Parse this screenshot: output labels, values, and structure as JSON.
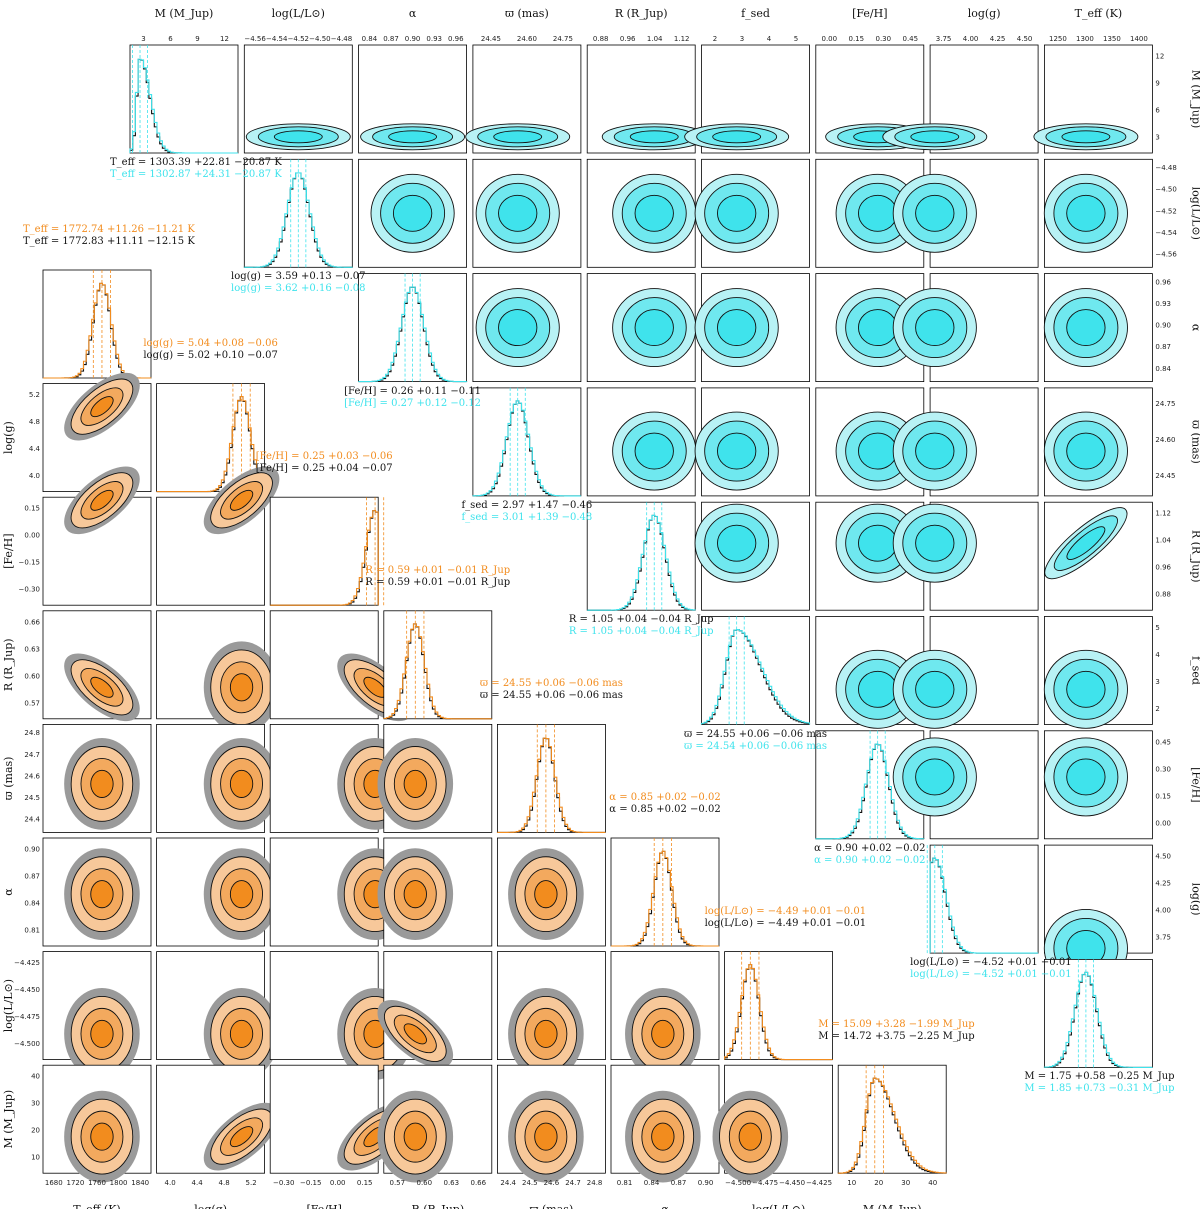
{
  "chart_data": [
    {
      "type": "corner",
      "name_note": "lower-left triangle",
      "series": [
        {
          "color": "#f28c1e",
          "role": "orange"
        },
        {
          "color": "#555555",
          "role": "black-outline / grey fill"
        }
      ],
      "parameters": [
        {
          "key": "teff",
          "label": "T_eff (K)",
          "ticks": [
            "1680",
            "1720",
            "1760",
            "1800",
            "1840"
          ],
          "range": [
            1680,
            1850
          ]
        },
        {
          "key": "logg",
          "label": "log(g)",
          "ticks": [
            "4.0",
            "4.4",
            "4.8",
            "5.2"
          ],
          "range": [
            3.85,
            5.35
          ]
        },
        {
          "key": "feh",
          "label": "[Fe/H]",
          "ticks": [
            "−0.30",
            "−0.15",
            "0.00",
            "0.15"
          ],
          "range": [
            -0.42,
            0.27
          ]
        },
        {
          "key": "r",
          "label": "R (R_Jup)",
          "ticks": [
            "0.57",
            "0.60",
            "0.63",
            "0.66"
          ],
          "range": [
            0.555,
            0.675
          ]
        },
        {
          "key": "plx",
          "label": "ϖ (mas)",
          "ticks": [
            "24.4",
            "24.5",
            "24.6",
            "24.7",
            "24.8"
          ],
          "range": [
            24.33,
            24.82
          ]
        },
        {
          "key": "alpha",
          "label": "α",
          "ticks": [
            "0.81",
            "0.84",
            "0.87",
            "0.90"
          ],
          "range": [
            0.79,
            0.915
          ]
        },
        {
          "key": "logl",
          "label": "log(L/L⊙)",
          "ticks": [
            "−4.500",
            "−4.475",
            "−4.450",
            "−4.425"
          ],
          "range": [
            -4.515,
            -4.41
          ]
        },
        {
          "key": "m",
          "label": "M (M_Jup)",
          "ticks": [
            "10",
            "20",
            "30",
            "40"
          ],
          "range": [
            0,
            44
          ]
        }
      ],
      "summaries": [
        {
          "orange": "T_eff = 1772.74 +11.26 −11.21 K",
          "black": "T_eff = 1772.83 +11.11 −12.15 K"
        },
        {
          "orange": "log(g) = 5.04 +0.08 −0.06",
          "black": "log(g) = 5.02 +0.10 −0.07"
        },
        {
          "orange": "[Fe/H] = 0.25 +0.03 −0.06",
          "black": "[Fe/H] = 0.25 +0.04 −0.07"
        },
        {
          "orange": "R = 0.59 +0.01 −0.01 R_Jup",
          "black": "R = 0.59 +0.01 −0.01 R_Jup"
        },
        {
          "orange": "ϖ = 24.55 +0.06 −0.06 mas",
          "black": "ϖ = 24.55 +0.06 −0.06 mas"
        },
        {
          "orange": "α = 0.85 +0.02 −0.02",
          "black": "α = 0.85 +0.02 −0.02"
        },
        {
          "orange": "log(L/L⊙) = −4.49 +0.01 −0.01",
          "black": "log(L/L⊙) = −4.49 +0.01 −0.01"
        },
        {
          "orange": "M = 15.09 +3.28 −1.99 M_Jup",
          "black": "M = 14.72 +3.75 −2.25 M_Jup"
        }
      ],
      "medians": [
        1772.8,
        5.03,
        0.25,
        0.59,
        24.55,
        0.85,
        -4.49,
        14.9
      ]
    },
    {
      "type": "corner",
      "name_note": "upper-right triangle",
      "series": [
        {
          "color": "#3fe3ec",
          "role": "cyan"
        },
        {
          "color": "#555555",
          "role": "black-outline / grey fill"
        }
      ],
      "parameters": [
        {
          "key": "m",
          "label": "M (M_Jup)",
          "ticks": [
            "3",
            "6",
            "9",
            "12"
          ],
          "range": [
            0.5,
            14.5
          ]
        },
        {
          "key": "logl",
          "label": "log(L/L⊙)",
          "ticks": [
            "−4.56",
            "−4.54",
            "−4.52",
            "−4.50",
            "−4.48"
          ],
          "range": [
            -4.565,
            -4.475
          ]
        },
        {
          "key": "alpha",
          "label": "α",
          "ticks": [
            "0.84",
            "0.87",
            "0.90",
            "0.93",
            "0.96"
          ],
          "range": [
            0.835,
            0.965
          ]
        },
        {
          "key": "plx",
          "label": "ϖ (mas)",
          "ticks": [
            "24.45",
            "24.60",
            "24.75"
          ],
          "range": [
            24.35,
            24.82
          ]
        },
        {
          "key": "r",
          "label": "R (R_Jup)",
          "ticks": [
            "0.88",
            "0.96",
            "1.04",
            "1.12"
          ],
          "range": [
            0.87,
            1.16
          ]
        },
        {
          "key": "fsed",
          "label": "f_sed",
          "ticks": [
            "2",
            "3",
            "4",
            "5"
          ],
          "range": [
            1.6,
            5.9
          ]
        },
        {
          "key": "feh",
          "label": "[Fe/H]",
          "ticks": [
            "0.00",
            "0.15",
            "0.30",
            "0.45"
          ],
          "range": [
            -0.05,
            0.5
          ]
        },
        {
          "key": "logg",
          "label": "log(g)",
          "ticks": [
            "3.75",
            "4.00",
            "4.25",
            "4.50"
          ],
          "range": [
            3.55,
            4.7
          ]
        },
        {
          "key": "teff",
          "label": "T_eff (K)",
          "ticks": [
            "1250",
            "1300",
            "1350",
            "1400"
          ],
          "range": [
            1230,
            1420
          ]
        }
      ],
      "summaries": [
        {
          "cyan": "log(g) = 3.62 +0.16 −0.08",
          "black": "log(g) = 3.59 +0.13 −0.07"
        },
        {
          "cyan": "[Fe/H] = 0.27 +0.12 −0.12",
          "black": "[Fe/H] = 0.26 +0.11 −0.11"
        },
        {
          "cyan": "f_sed = 3.01 +1.39 −0.48",
          "black": "f_sed = 2.97 +1.47 −0.46"
        },
        {
          "cyan": "R = 1.05 +0.04 −0.04 R_Jup",
          "black": "R = 1.05 +0.04 −0.04 R_Jup"
        },
        {
          "cyan": "ϖ = 24.54 +0.06 −0.06 mas",
          "black": "ϖ = 24.55 +0.06 −0.06 mas"
        },
        {
          "cyan": "α = 0.90 +0.02 −0.02",
          "black": "α = 0.90 +0.02 −0.02"
        },
        {
          "cyan": "log(L/L⊙) = −4.52 +0.01 −0.01",
          "black": "log(L/L⊙) = −4.52 +0.01 −0.01"
        },
        {
          "cyan": "M = 1.85 +0.73 −0.31 M_Jup",
          "black": "M = 1.75 +0.58 −0.25 M_Jup"
        },
        {
          "cyan": "T_eff = 1302.87 +24.31 −20.87 K",
          "black": "T_eff = 1303.39 +22.81 −20.87 K"
        }
      ],
      "medians": [
        1.8,
        -4.52,
        0.9,
        24.545,
        1.05,
        3.0,
        0.265,
        3.6,
        1303
      ]
    }
  ]
}
